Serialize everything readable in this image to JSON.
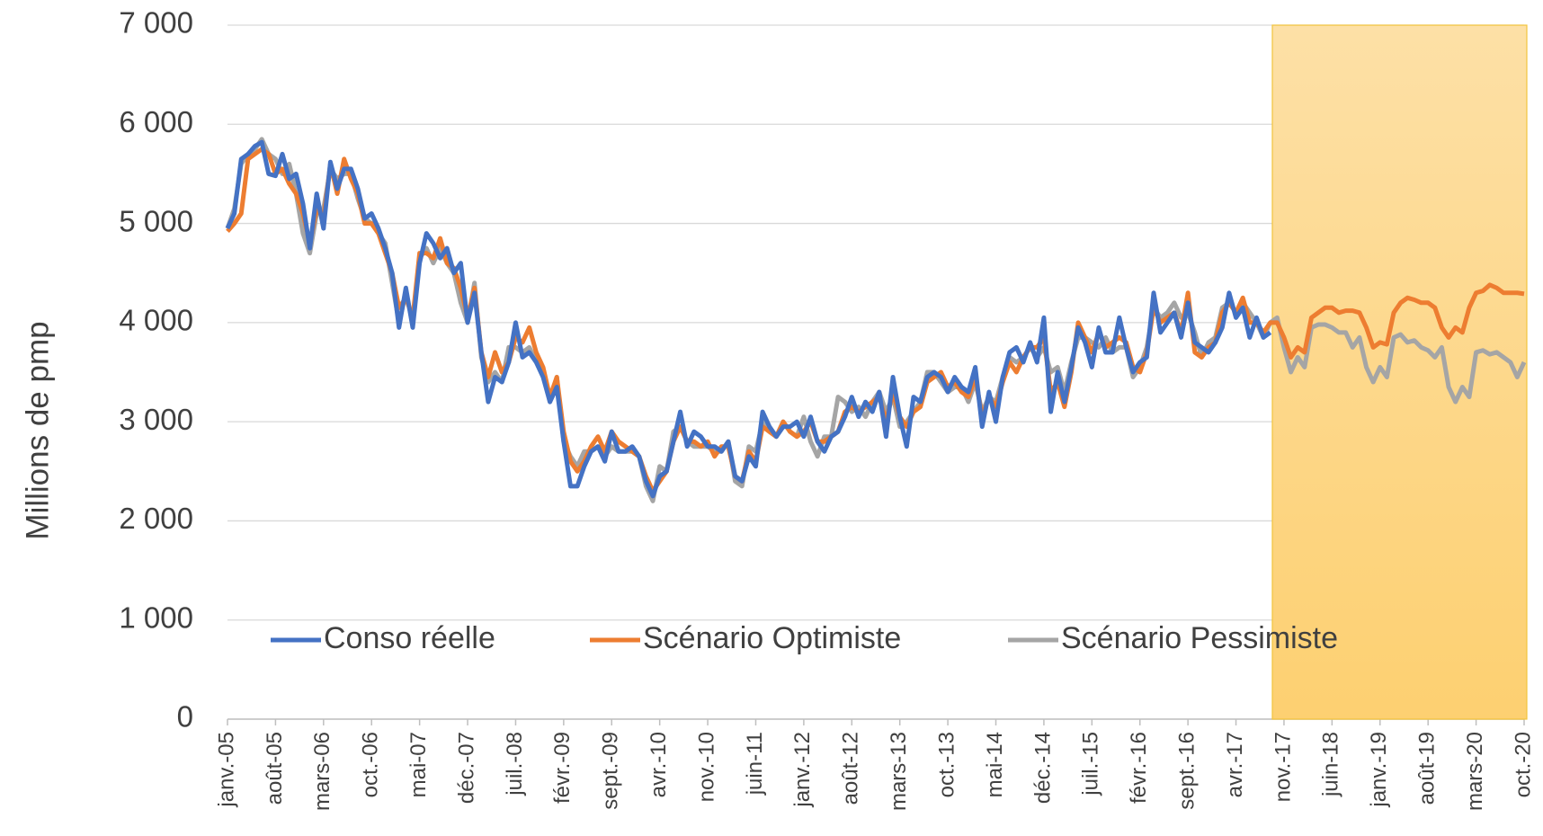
{
  "chart_data": {
    "type": "line",
    "y_label": "Millions de pmp",
    "categories": [
      "janv.-05",
      null,
      null,
      null,
      null,
      null,
      null,
      "août-05",
      null,
      null,
      null,
      null,
      null,
      null,
      "mars-06",
      null,
      null,
      null,
      null,
      null,
      null,
      "oct.-06",
      null,
      null,
      null,
      null,
      null,
      null,
      "mai-07",
      null,
      null,
      null,
      null,
      null,
      null,
      "déc.-07",
      null,
      null,
      null,
      null,
      null,
      null,
      "juil.-08",
      null,
      null,
      null,
      null,
      null,
      null,
      "févr.-09",
      null,
      null,
      null,
      null,
      null,
      null,
      "sept.-09",
      null,
      null,
      null,
      null,
      null,
      null,
      "avr.-10",
      null,
      null,
      null,
      null,
      null,
      null,
      "nov.-10",
      null,
      null,
      null,
      null,
      null,
      null,
      "juin-11",
      null,
      null,
      null,
      null,
      null,
      null,
      "janv.-12",
      null,
      null,
      null,
      null,
      null,
      null,
      "août-12",
      null,
      null,
      null,
      null,
      null,
      null,
      "mars-13",
      null,
      null,
      null,
      null,
      null,
      null,
      "oct.-13",
      null,
      null,
      null,
      null,
      null,
      null,
      "mai-14",
      null,
      null,
      null,
      null,
      null,
      null,
      "déc.-14",
      null,
      null,
      null,
      null,
      null,
      null,
      "juil.-15",
      null,
      null,
      null,
      null,
      null,
      null,
      "févr.-16",
      null,
      null,
      null,
      null,
      null,
      null,
      "sept.-16",
      null,
      null,
      null,
      null,
      null,
      null,
      "avr.-17",
      null,
      null,
      null,
      null,
      null,
      null,
      "nov.-17",
      null,
      null,
      null,
      null,
      null,
      null,
      "juin-18",
      null,
      null,
      null,
      null,
      null,
      null,
      "janv.-19",
      null,
      null,
      null,
      null,
      null,
      null,
      "août-19",
      null,
      null,
      null,
      null,
      null,
      null,
      "mars-20",
      null,
      null,
      null,
      null,
      null,
      null,
      "oct.-20"
    ],
    "series": [
      {
        "name": "Conso réelle",
        "color": "#4472c4",
        "values": [
          4950,
          5100,
          5650,
          5700,
          5780,
          5820,
          5500,
          5480,
          5700,
          5450,
          5500,
          5200,
          4750,
          5300,
          4950,
          5620,
          5350,
          5550,
          5550,
          5350,
          5050,
          5100,
          4950,
          4750,
          4500,
          3950,
          4350,
          3950,
          4600,
          4900,
          4800,
          4650,
          4750,
          4500,
          4600,
          4000,
          4300,
          3700,
          3200,
          3450,
          3400,
          3600,
          4000,
          3650,
          3700,
          3600,
          3450,
          3200,
          3350,
          2800,
          2350,
          2350,
          2550,
          2700,
          2750,
          2600,
          2900,
          2700,
          2700,
          2750,
          2650,
          2400,
          2250,
          2450,
          2500,
          2800,
          3100,
          2750,
          2900,
          2850,
          2750,
          2750,
          2700,
          2800,
          2450,
          2400,
          2650,
          2550,
          3100,
          2950,
          2850,
          2950,
          2950,
          3000,
          2850,
          3050,
          2800,
          2700,
          2850,
          2900,
          3050,
          3250,
          3050,
          3200,
          3100,
          3300,
          2850,
          3450,
          3050,
          2750,
          3250,
          3200,
          3450,
          3500,
          3450,
          3300,
          3450,
          3350,
          3300,
          3550,
          2950,
          3300,
          3000,
          3450,
          3700,
          3750,
          3600,
          3800,
          3600,
          4050,
          3100,
          3500,
          3200,
          3550,
          3950,
          3800,
          3550,
          3950,
          3700,
          3700,
          4050,
          3750,
          3500,
          3600,
          3650,
          4300,
          3900,
          4000,
          4100,
          3850,
          4200,
          3800,
          3750,
          3700,
          3800,
          3950,
          4300,
          4050,
          4150,
          3850,
          4050,
          3850,
          3900,
          null,
          null,
          null,
          null,
          null,
          null,
          null,
          null,
          null,
          null,
          null,
          null,
          null,
          null,
          null,
          null,
          null,
          null,
          null,
          null,
          null,
          null,
          null,
          null,
          null,
          null,
          null,
          null,
          null,
          null,
          null,
          null,
          null,
          null,
          null,
          null,
          null
        ]
      },
      {
        "name": "Scénario Optimiste",
        "color": "#ed7d31",
        "values": [
          4920,
          5000,
          5100,
          5650,
          5700,
          5750,
          5700,
          5500,
          5550,
          5400,
          5300,
          5100,
          4800,
          5150,
          5050,
          5600,
          5300,
          5650,
          5450,
          5300,
          5000,
          5000,
          4900,
          4700,
          4500,
          4150,
          4250,
          4050,
          4700,
          4700,
          4650,
          4850,
          4600,
          4550,
          4350,
          4050,
          4350,
          3700,
          3450,
          3700,
          3500,
          3600,
          3850,
          3800,
          3950,
          3700,
          3550,
          3250,
          3450,
          2900,
          2600,
          2500,
          2600,
          2750,
          2850,
          2700,
          2900,
          2800,
          2750,
          2700,
          2650,
          2450,
          2300,
          2400,
          2500,
          2800,
          2950,
          2800,
          2800,
          2750,
          2800,
          2650,
          2750,
          2750,
          2450,
          2400,
          2700,
          2600,
          2950,
          2900,
          2850,
          3000,
          2900,
          2850,
          2900,
          3000,
          2800,
          2800,
          2850,
          2900,
          3100,
          3150,
          3100,
          3150,
          3200,
          3250,
          3000,
          3300,
          3050,
          2950,
          3100,
          3150,
          3400,
          3450,
          3500,
          3350,
          3400,
          3300,
          3250,
          3450,
          3050,
          3250,
          3150,
          3400,
          3600,
          3500,
          3650,
          3750,
          3750,
          3850,
          3300,
          3400,
          3150,
          3500,
          4000,
          3850,
          3700,
          3900,
          3750,
          3800,
          3850,
          3800,
          3550,
          3500,
          3700,
          4150,
          4000,
          4050,
          4100,
          3900,
          4300,
          3700,
          3650,
          3750,
          3800,
          4100,
          4200,
          4100,
          4250,
          4000,
          4000,
          3900,
          4000,
          4000,
          3850,
          3650,
          3750,
          3700,
          4050,
          4100,
          4150,
          4150,
          4100,
          4120,
          4120,
          4100,
          3950,
          3750,
          3800,
          3780,
          4100,
          4200,
          4250,
          4230,
          4200,
          4200,
          4150,
          3950,
          3850,
          3950,
          3900,
          4150,
          4300,
          4320,
          4380,
          4350,
          4300,
          4300,
          4300,
          4290
        ]
      },
      {
        "name": "Scénario Pessimiste",
        "color": "#a5a5a5",
        "values": [
          4950,
          5150,
          5600,
          5700,
          5750,
          5850,
          5700,
          5650,
          5500,
          5600,
          5300,
          4900,
          4700,
          5100,
          5150,
          5550,
          5450,
          5500,
          5500,
          5250,
          5050,
          5000,
          4900,
          4800,
          4400,
          4000,
          4300,
          4000,
          4650,
          4750,
          4600,
          4750,
          4600,
          4500,
          4200,
          4000,
          4400,
          3650,
          3400,
          3500,
          3400,
          3750,
          3750,
          3700,
          3750,
          3600,
          3500,
          3200,
          3450,
          2800,
          2650,
          2550,
          2700,
          2700,
          2750,
          2650,
          2750,
          2700,
          2700,
          2700,
          2650,
          2350,
          2200,
          2550,
          2500,
          2900,
          2950,
          2800,
          2750,
          2750,
          2750,
          2700,
          2700,
          2800,
          2400,
          2350,
          2750,
          2700,
          3000,
          2900,
          2850,
          3000,
          2900,
          2850,
          3050,
          2800,
          2650,
          2850,
          2850,
          3250,
          3200,
          3100,
          3150,
          3050,
          3200,
          3300,
          3100,
          3250,
          2950,
          3000,
          3100,
          3200,
          3500,
          3500,
          3400,
          3300,
          3350,
          3350,
          3200,
          3400,
          3100,
          3250,
          3200,
          3450,
          3650,
          3600,
          3650,
          3750,
          3650,
          3750,
          3500,
          3550,
          3300,
          3600,
          3850,
          3850,
          3800,
          3750,
          3850,
          3700,
          3750,
          3750,
          3450,
          3550,
          3750,
          4150,
          4050,
          4100,
          4200,
          4050,
          4100,
          3900,
          3650,
          3800,
          3850,
          4150,
          4200,
          4100,
          4200,
          4100,
          4000,
          3850,
          4000,
          4050,
          3750,
          3500,
          3650,
          3550,
          3950,
          3980,
          3980,
          3950,
          3900,
          3900,
          3750,
          3850,
          3550,
          3400,
          3550,
          3450,
          3850,
          3880,
          3800,
          3820,
          3750,
          3720,
          3650,
          3750,
          3350,
          3200,
          3350,
          3250,
          3700,
          3720,
          3680,
          3700,
          3650,
          3600,
          3450,
          3600
        ]
      }
    ],
    "ylim": [
      0,
      7000
    ],
    "yticks": [
      0,
      {
        "value": 1000,
        "label": "1 000"
      },
      {
        "value": 2000,
        "label": "2 000"
      },
      {
        "value": 3000,
        "label": "3 000"
      },
      {
        "value": 4000,
        "label": "4 000"
      },
      {
        "value": 5000,
        "label": "5 000"
      },
      {
        "value": 6000,
        "label": "6 000"
      },
      {
        "value": 7000,
        "label": "7 000"
      }
    ],
    "grid": true
  }
}
